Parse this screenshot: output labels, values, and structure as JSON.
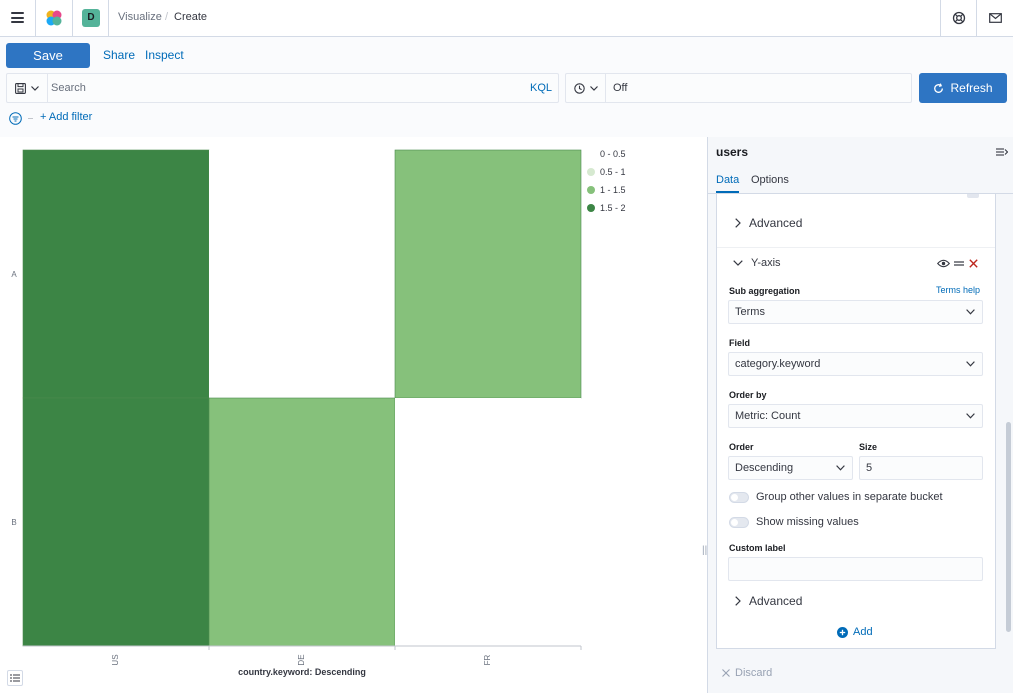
{
  "header": {
    "space_initial": "D",
    "breadcrumbs": [
      "Visualize",
      "Create"
    ],
    "separator": "/"
  },
  "top_nav": {
    "save_label": "Save",
    "share_label": "Share",
    "inspect_label": "Inspect"
  },
  "query_bar": {
    "search_placeholder": "Search",
    "language_label": "KQL",
    "refresh_interval": "Off",
    "refresh_label": "Refresh"
  },
  "filter_bar": {
    "add_filter_label": "+ Add filter"
  },
  "chart_data": {
    "type": "heatmap",
    "x_categories": [
      "US",
      "DE",
      "FR"
    ],
    "y_categories": [
      "A",
      "B"
    ],
    "values": [
      [
        2,
        0,
        1
      ],
      [
        2,
        1,
        0
      ]
    ],
    "xlabel": "country.keyword: Descending",
    "legend": [
      {
        "label": "0 - 0.5",
        "color": "#ffffff"
      },
      {
        "label": "0.5 - 1",
        "color": "#d6e9d0"
      },
      {
        "label": "1 - 1.5",
        "color": "#86c17b"
      },
      {
        "label": "1.5 - 2",
        "color": "#3c8545"
      }
    ],
    "legend_position": "right"
  },
  "sidebar": {
    "index_pattern": "users",
    "tabs": [
      "Data",
      "Options"
    ],
    "advanced_label": "Advanced",
    "bucket_title": "Y-axis",
    "sub_aggregation_label": "Sub aggregation",
    "terms_help_label": "Terms help",
    "sub_aggregation_value": "Terms",
    "field_label": "Field",
    "field_value": "category.keyword",
    "order_by_label": "Order by",
    "order_by_value": "Metric: Count",
    "order_label": "Order",
    "order_value": "Descending",
    "size_label": "Size",
    "size_value": "5",
    "group_other_label": "Group other values in separate bucket",
    "show_missing_label": "Show missing values",
    "custom_label_label": "Custom label",
    "custom_label_value": "",
    "advanced_label_2": "Advanced",
    "add_label": "Add",
    "discard_label": "Discard"
  },
  "colors": {
    "primary": "#2e75c3",
    "link": "#006bb8",
    "danger": "#bd271e"
  }
}
